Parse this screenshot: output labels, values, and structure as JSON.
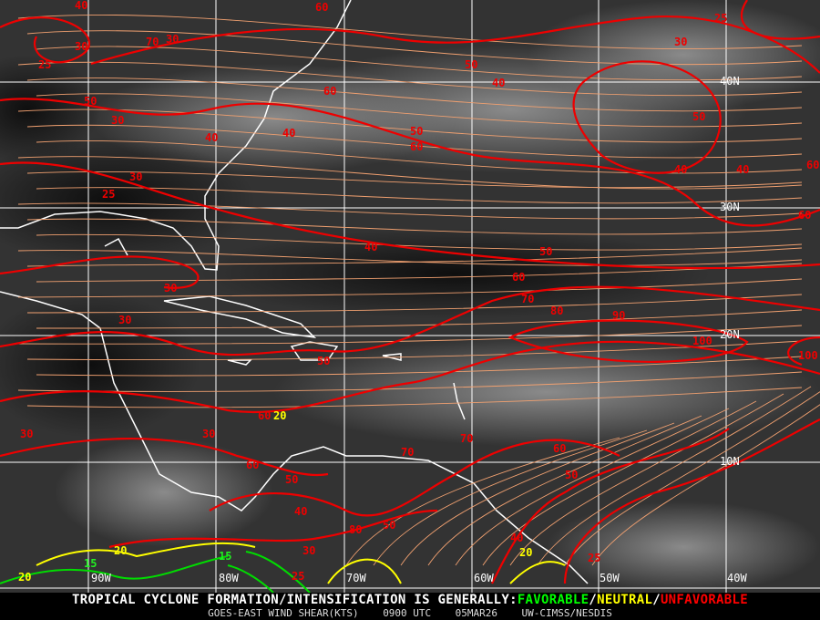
{
  "map": {
    "longitude_labels": [
      "90W",
      "80W",
      "70W",
      "60W",
      "50W",
      "40W"
    ],
    "latitude_labels": [
      "40N",
      "30N",
      "20N",
      "10N"
    ],
    "contour_colors": {
      "unfavorable": "#ff0000",
      "neutral": "#ffff00",
      "favorable": "#00e000",
      "streamlines": "#f0a070",
      "coastlines": "#ffffff"
    },
    "contour_labels": [
      "40",
      "30",
      "25",
      "60",
      "50",
      "70",
      "30",
      "40",
      "50",
      "60",
      "40",
      "30",
      "50",
      "60",
      "25",
      "30",
      "40",
      "50",
      "60",
      "70",
      "80",
      "90",
      "100",
      "100",
      "30",
      "20",
      "20",
      "15",
      "15",
      "20",
      "25",
      "30",
      "40",
      "50",
      "60",
      "70",
      "80",
      "60",
      "50",
      "40",
      "30",
      "20",
      "25",
      "30",
      "50",
      "60",
      "40",
      "60",
      "30",
      "40",
      "50",
      "25",
      "30",
      "40",
      "60",
      "50",
      "70"
    ]
  },
  "footer": {
    "headline_prefix": "TROPICAL CYCLONE FORMATION/INTENSIFICATION IS GENERALLY:",
    "favorable": "FAVORABLE",
    "sep1": "/",
    "neutral": "NEUTRAL",
    "sep2": "/",
    "unfavorable": "UNFAVORABLE",
    "product": "GOES-EAST WIND SHEAR(KTS)",
    "time": "0900 UTC",
    "date": "05MAR26",
    "source": "UW-CIMSS/NESDIS"
  }
}
